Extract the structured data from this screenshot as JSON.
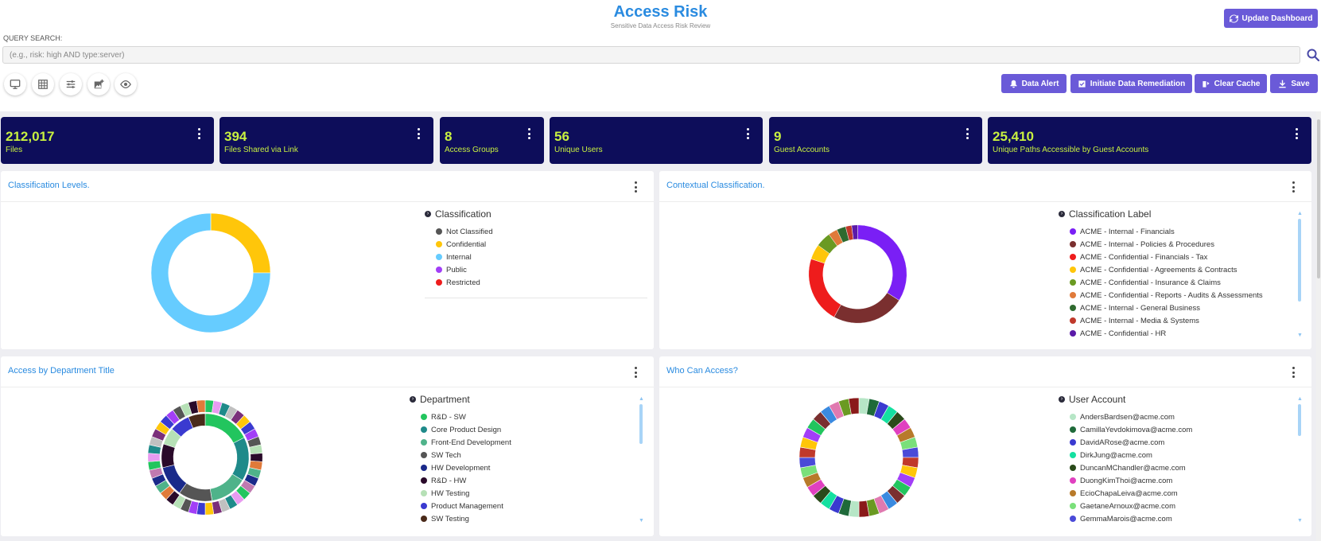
{
  "header": {
    "title": "Access Risk",
    "subtitle": "Sensitive Data Access Risk Review",
    "update_label": "Update Dashboard"
  },
  "search": {
    "label": "QUERY SEARCH:",
    "placeholder": "(e.g., risk: high AND type:server)",
    "value": ""
  },
  "toolbar": {
    "view_icons": [
      "monitor-icon",
      "grid-icon",
      "sliders-icon",
      "add-image-icon",
      "eye-icon"
    ],
    "actions": [
      {
        "label": "Data Alert",
        "icon": "bell-icon"
      },
      {
        "label": "Initiate Data Remediation",
        "icon": "checkbox-icon"
      },
      {
        "label": "Clear Cache",
        "icon": "eraser-icon"
      },
      {
        "label": "Save",
        "icon": "download-icon"
      }
    ]
  },
  "kpis": [
    {
      "value": "212,017",
      "label": "Files"
    },
    {
      "value": "394",
      "label": "Files Shared via Link"
    },
    {
      "value": "8",
      "label": "Access Groups"
    },
    {
      "value": "56",
      "label": "Unique Users"
    },
    {
      "value": "9",
      "label": "Guest Accounts"
    },
    {
      "value": "25,410",
      "label": "Unique Paths Accessible by Guest Accounts"
    }
  ],
  "panels": {
    "classification": {
      "title": "Classification Levels.",
      "legend_title": "Classification",
      "items": [
        {
          "label": "Not Classified",
          "color": "#555555"
        },
        {
          "label": "Confidential",
          "color": "#ffc60a"
        },
        {
          "label": "Internal",
          "color": "#66ccff"
        },
        {
          "label": "Public",
          "color": "#a23ef7"
        },
        {
          "label": "Restricted",
          "color": "#ee1c1c"
        }
      ]
    },
    "contextual": {
      "title": "Contextual Classification.",
      "legend_title": "Classification Label",
      "items": [
        {
          "label": "ACME - Internal - Financials",
          "color": "#7a1ff5"
        },
        {
          "label": "ACME - Internal - Policies & Procedures",
          "color": "#7a2f2f"
        },
        {
          "label": "ACME - Confidential - Financials - Tax",
          "color": "#ee1c1c"
        },
        {
          "label": "ACME - Confidential - Agreements & Contracts",
          "color": "#ffc60a"
        },
        {
          "label": "ACME - Confidential - Insurance & Claims",
          "color": "#6a9a22"
        },
        {
          "label": "ACME - Confidential - Reports - Audits & Assessments",
          "color": "#e07a3a"
        },
        {
          "label": "ACME - Internal - General Business",
          "color": "#2f6a2f"
        },
        {
          "label": "ACME - Internal - Media & Systems",
          "color": "#c0392b"
        },
        {
          "label": "ACME - Confidential - HR",
          "color": "#5a1aa8"
        }
      ]
    },
    "department": {
      "title": "Access by Department Title",
      "legend_title": "Department",
      "items": [
        {
          "label": "R&D - SW",
          "color": "#22c55e"
        },
        {
          "label": "Core Product Design",
          "color": "#1f8a8a"
        },
        {
          "label": "Front-End Development",
          "color": "#4fb38a"
        },
        {
          "label": "SW Tech",
          "color": "#555555"
        },
        {
          "label": "HW Development",
          "color": "#1a2a8a"
        },
        {
          "label": "R&D - HW",
          "color": "#2a0a2a"
        },
        {
          "label": "HW Testing",
          "color": "#b6e0b6"
        },
        {
          "label": "Product Management",
          "color": "#3a3ad0"
        },
        {
          "label": "SW Testing",
          "color": "#4a2a1a"
        }
      ]
    },
    "who": {
      "title": "Who Can Access?",
      "legend_title": "User Account",
      "items": [
        {
          "label": "AndersBardsen@acme.com",
          "color": "#b6e6c6"
        },
        {
          "label": "CamillaYevdokimova@acme.com",
          "color": "#1f6a3a"
        },
        {
          "label": "DavidARose@acme.com",
          "color": "#3a3ad0"
        },
        {
          "label": "DirkJung@acme.com",
          "color": "#14e0a0"
        },
        {
          "label": "DuncanMChandler@acme.com",
          "color": "#2a4a1a"
        },
        {
          "label": "DuongKimThoi@acme.com",
          "color": "#e040c0"
        },
        {
          "label": "EcioChapaLeiva@acme.com",
          "color": "#b87a2a"
        },
        {
          "label": "GaetaneArnoux@acme.com",
          "color": "#7ae07a"
        },
        {
          "label": "GemmaMarois@acme.com",
          "color": "#4a4ad8"
        }
      ]
    }
  }
}
